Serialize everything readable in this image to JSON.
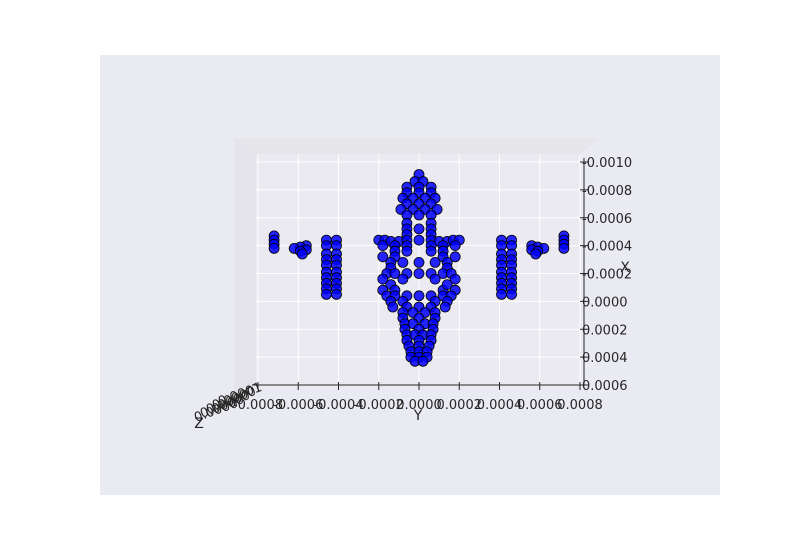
{
  "chart_data": {
    "type": "scatter",
    "projection": "3d",
    "xlabel": "Y",
    "ylabel": "X",
    "zlabel": "Z",
    "x_ticks": [
      "-0.0008",
      "-0.0006",
      "-0.0004",
      "-0.0002",
      "0.0000",
      "0.0002",
      "0.0004",
      "0.0006",
      "0.0008"
    ],
    "y_ticks": [
      "-0.0010",
      "-0.0008",
      "-0.0006",
      "-0.0004",
      "-0.0002",
      "0.0000",
      "0.0002",
      "0.0004",
      "0.0006"
    ],
    "xlim": [
      -0.0008,
      0.0008
    ],
    "ylim": [
      -0.001,
      0.0006
    ],
    "grid": true,
    "marker_color": "#0000ff",
    "marker_edge_color": "#000000",
    "pane_color": "#eaeaf2",
    "figure_background": "#ffffff",
    "axes_background": "#eaeaf2",
    "series": [
      {
        "values": [
          {
            "x": 0.0,
            "y": -0.00091
          },
          {
            "x": -2e-05,
            "y": -0.00086
          },
          {
            "x": 2e-05,
            "y": -0.00086
          },
          {
            "x": -6e-05,
            "y": -0.00082
          },
          {
            "x": 0.0,
            "y": -0.00082
          },
          {
            "x": 6e-05,
            "y": -0.00082
          },
          {
            "x": -6e-05,
            "y": -0.00078
          },
          {
            "x": 0.0,
            "y": -0.00078
          },
          {
            "x": 6e-05,
            "y": -0.00078
          },
          {
            "x": -8e-05,
            "y": -0.00074
          },
          {
            "x": -3e-05,
            "y": -0.00074
          },
          {
            "x": 3e-05,
            "y": -0.00074
          },
          {
            "x": 8e-05,
            "y": -0.00074
          },
          {
            "x": -6e-05,
            "y": -0.0007
          },
          {
            "x": 0.0,
            "y": -0.0007
          },
          {
            "x": 6e-05,
            "y": -0.0007
          },
          {
            "x": -9e-05,
            "y": -0.00066
          },
          {
            "x": -3e-05,
            "y": -0.00066
          },
          {
            "x": 3e-05,
            "y": -0.00066
          },
          {
            "x": 9e-05,
            "y": -0.00066
          },
          {
            "x": -6e-05,
            "y": -0.00062
          },
          {
            "x": 0.0,
            "y": -0.00062
          },
          {
            "x": 6e-05,
            "y": -0.00062
          },
          {
            "x": -6e-05,
            "y": -0.00056
          },
          {
            "x": 6e-05,
            "y": -0.00056
          },
          {
            "x": -6e-05,
            "y": -0.00052
          },
          {
            "x": 0.0,
            "y": -0.00052
          },
          {
            "x": 6e-05,
            "y": -0.00052
          },
          {
            "x": -6e-05,
            "y": -0.00048
          },
          {
            "x": 6e-05,
            "y": -0.00048
          },
          {
            "x": -0.0002,
            "y": -0.00044
          },
          {
            "x": -0.00017,
            "y": -0.00044
          },
          {
            "x": -0.00014,
            "y": -0.00043
          },
          {
            "x": -0.0001,
            "y": -0.00043
          },
          {
            "x": -6e-05,
            "y": -0.00044
          },
          {
            "x": 0.0,
            "y": -0.00044
          },
          {
            "x": 6e-05,
            "y": -0.00044
          },
          {
            "x": 0.0001,
            "y": -0.00043
          },
          {
            "x": 0.00014,
            "y": -0.00043
          },
          {
            "x": 0.00017,
            "y": -0.00044
          },
          {
            "x": 0.0002,
            "y": -0.00044
          },
          {
            "x": -0.00018,
            "y": -0.0004
          },
          {
            "x": -0.00012,
            "y": -0.0004
          },
          {
            "x": 0.00012,
            "y": -0.0004
          },
          {
            "x": 0.00018,
            "y": -0.0004
          },
          {
            "x": -6e-05,
            "y": -0.0004
          },
          {
            "x": 6e-05,
            "y": -0.0004
          },
          {
            "x": -0.00012,
            "y": -0.00036
          },
          {
            "x": -6e-05,
            "y": -0.00036
          },
          {
            "x": 6e-05,
            "y": -0.00036
          },
          {
            "x": 0.00012,
            "y": -0.00036
          },
          {
            "x": -0.00018,
            "y": -0.00032
          },
          {
            "x": -0.00012,
            "y": -0.00032
          },
          {
            "x": 0.00012,
            "y": -0.00032
          },
          {
            "x": 0.00018,
            "y": -0.00032
          },
          {
            "x": -0.00014,
            "y": -0.00028
          },
          {
            "x": -8e-05,
            "y": -0.00028
          },
          {
            "x": 0.0,
            "y": -0.00028
          },
          {
            "x": 8e-05,
            "y": -0.00028
          },
          {
            "x": 0.00014,
            "y": -0.00028
          },
          {
            "x": -0.00014,
            "y": -0.00024
          },
          {
            "x": 0.00014,
            "y": -0.00024
          },
          {
            "x": -0.00016,
            "y": -0.0002
          },
          {
            "x": -0.00012,
            "y": -0.0002
          },
          {
            "x": -6e-05,
            "y": -0.0002
          },
          {
            "x": 0.0,
            "y": -0.0002
          },
          {
            "x": 6e-05,
            "y": -0.0002
          },
          {
            "x": 0.00012,
            "y": -0.0002
          },
          {
            "x": 0.00016,
            "y": -0.0002
          },
          {
            "x": -0.00018,
            "y": -0.00016
          },
          {
            "x": -8e-05,
            "y": -0.00016
          },
          {
            "x": 8e-05,
            "y": -0.00016
          },
          {
            "x": 0.00018,
            "y": -0.00016
          },
          {
            "x": -0.00014,
            "y": -0.00012
          },
          {
            "x": -0.00012,
            "y": -8e-05
          },
          {
            "x": 0.00012,
            "y": -8e-05
          },
          {
            "x": 0.00014,
            "y": -0.00012
          },
          {
            "x": -0.00018,
            "y": -8e-05
          },
          {
            "x": 0.00018,
            "y": -8e-05
          },
          {
            "x": -0.00016,
            "y": -4e-05
          },
          {
            "x": -0.00012,
            "y": -4e-05
          },
          {
            "x": -6e-05,
            "y": -4e-05
          },
          {
            "x": 0.0,
            "y": -4e-05
          },
          {
            "x": 6e-05,
            "y": -4e-05
          },
          {
            "x": 0.00012,
            "y": -4e-05
          },
          {
            "x": 0.00016,
            "y": -4e-05
          },
          {
            "x": -0.00014,
            "y": 0.0
          },
          {
            "x": -8e-05,
            "y": 0.0
          },
          {
            "x": 8e-05,
            "y": 0.0
          },
          {
            "x": 0.00014,
            "y": 0.0
          },
          {
            "x": -0.00013,
            "y": 4e-05
          },
          {
            "x": -6e-05,
            "y": 4e-05
          },
          {
            "x": 0.0,
            "y": 4e-05
          },
          {
            "x": 6e-05,
            "y": 4e-05
          },
          {
            "x": 0.00013,
            "y": 4e-05
          },
          {
            "x": -8e-05,
            "y": 8e-05
          },
          {
            "x": -3e-05,
            "y": 8e-05
          },
          {
            "x": 3e-05,
            "y": 8e-05
          },
          {
            "x": 8e-05,
            "y": 8e-05
          },
          {
            "x": -8e-05,
            "y": 0.00012
          },
          {
            "x": 0.0,
            "y": 0.00012
          },
          {
            "x": 8e-05,
            "y": 0.00012
          },
          {
            "x": -7e-05,
            "y": 0.00016
          },
          {
            "x": -3e-05,
            "y": 0.00016
          },
          {
            "x": 3e-05,
            "y": 0.00016
          },
          {
            "x": 7e-05,
            "y": 0.00016
          },
          {
            "x": -7e-05,
            "y": 0.0002
          },
          {
            "x": 0.0,
            "y": 0.0002
          },
          {
            "x": 7e-05,
            "y": 0.0002
          },
          {
            "x": -6e-05,
            "y": 0.00024
          },
          {
            "x": -2e-05,
            "y": 0.00024
          },
          {
            "x": 2e-05,
            "y": 0.00024
          },
          {
            "x": 6e-05,
            "y": 0.00024
          },
          {
            "x": -6e-05,
            "y": 0.00028
          },
          {
            "x": 0.0,
            "y": 0.00028
          },
          {
            "x": 6e-05,
            "y": 0.00028
          },
          {
            "x": -5e-05,
            "y": 0.00032
          },
          {
            "x": 0.0,
            "y": 0.00032
          },
          {
            "x": 5e-05,
            "y": 0.00032
          },
          {
            "x": -4e-05,
            "y": 0.00036
          },
          {
            "x": 0.0,
            "y": 0.00036
          },
          {
            "x": 4e-05,
            "y": 0.00036
          },
          {
            "x": -4e-05,
            "y": 0.0004
          },
          {
            "x": 0.0,
            "y": 0.0004
          },
          {
            "x": 4e-05,
            "y": 0.0004
          },
          {
            "x": -2e-05,
            "y": 0.00043
          },
          {
            "x": 2e-05,
            "y": 0.00043
          },
          {
            "x": -0.00046,
            "y": -0.00044
          },
          {
            "x": -0.00041,
            "y": -0.00044
          },
          {
            "x": -0.00046,
            "y": -0.0004
          },
          {
            "x": -0.00041,
            "y": -0.0004
          },
          {
            "x": -0.00046,
            "y": -0.00034
          },
          {
            "x": -0.00041,
            "y": -0.00034
          },
          {
            "x": -0.00046,
            "y": -0.0003
          },
          {
            "x": -0.00041,
            "y": -0.0003
          },
          {
            "x": -0.00046,
            "y": -0.00026
          },
          {
            "x": -0.00041,
            "y": -0.00026
          },
          {
            "x": -0.00046,
            "y": -0.00021
          },
          {
            "x": -0.00041,
            "y": -0.00021
          },
          {
            "x": -0.00046,
            "y": -0.00017
          },
          {
            "x": -0.00041,
            "y": -0.00017
          },
          {
            "x": -0.00046,
            "y": -0.00013
          },
          {
            "x": -0.00041,
            "y": -0.00013
          },
          {
            "x": -0.00046,
            "y": -9e-05
          },
          {
            "x": -0.00041,
            "y": -9e-05
          },
          {
            "x": -0.00046,
            "y": -5e-05
          },
          {
            "x": -0.00041,
            "y": -5e-05
          },
          {
            "x": 0.00041,
            "y": -0.00044
          },
          {
            "x": 0.00046,
            "y": -0.00044
          },
          {
            "x": 0.00041,
            "y": -0.0004
          },
          {
            "x": 0.00046,
            "y": -0.0004
          },
          {
            "x": 0.00041,
            "y": -0.00034
          },
          {
            "x": 0.00046,
            "y": -0.00034
          },
          {
            "x": 0.00041,
            "y": -0.0003
          },
          {
            "x": 0.00046,
            "y": -0.0003
          },
          {
            "x": 0.00041,
            "y": -0.00026
          },
          {
            "x": 0.00046,
            "y": -0.00026
          },
          {
            "x": 0.00041,
            "y": -0.00021
          },
          {
            "x": 0.00046,
            "y": -0.00021
          },
          {
            "x": 0.00041,
            "y": -0.00017
          },
          {
            "x": 0.00046,
            "y": -0.00017
          },
          {
            "x": 0.00041,
            "y": -0.00013
          },
          {
            "x": 0.00046,
            "y": -0.00013
          },
          {
            "x": 0.00041,
            "y": -9e-05
          },
          {
            "x": 0.00046,
            "y": -9e-05
          },
          {
            "x": 0.00041,
            "y": -5e-05
          },
          {
            "x": 0.00046,
            "y": -5e-05
          },
          {
            "x": -0.00056,
            "y": -0.0004
          },
          {
            "x": -0.00059,
            "y": -0.00039
          },
          {
            "x": -0.00062,
            "y": -0.00038
          },
          {
            "x": -0.00056,
            "y": -0.00037
          },
          {
            "x": -0.00059,
            "y": -0.00036
          },
          {
            "x": -0.00058,
            "y": -0.00034
          },
          {
            "x": -0.00072,
            "y": -0.00047
          },
          {
            "x": -0.00072,
            "y": -0.00044
          },
          {
            "x": -0.00072,
            "y": -0.00041
          },
          {
            "x": -0.00072,
            "y": -0.00038
          },
          {
            "x": 0.00056,
            "y": -0.0004
          },
          {
            "x": 0.00059,
            "y": -0.00039
          },
          {
            "x": 0.00062,
            "y": -0.00038
          },
          {
            "x": 0.00056,
            "y": -0.00037
          },
          {
            "x": 0.00059,
            "y": -0.00036
          },
          {
            "x": 0.00058,
            "y": -0.00034
          },
          {
            "x": 0.00072,
            "y": -0.00047
          },
          {
            "x": 0.00072,
            "y": -0.00044
          },
          {
            "x": 0.00072,
            "y": -0.00041
          },
          {
            "x": 0.00072,
            "y": -0.00038
          }
        ]
      }
    ]
  }
}
